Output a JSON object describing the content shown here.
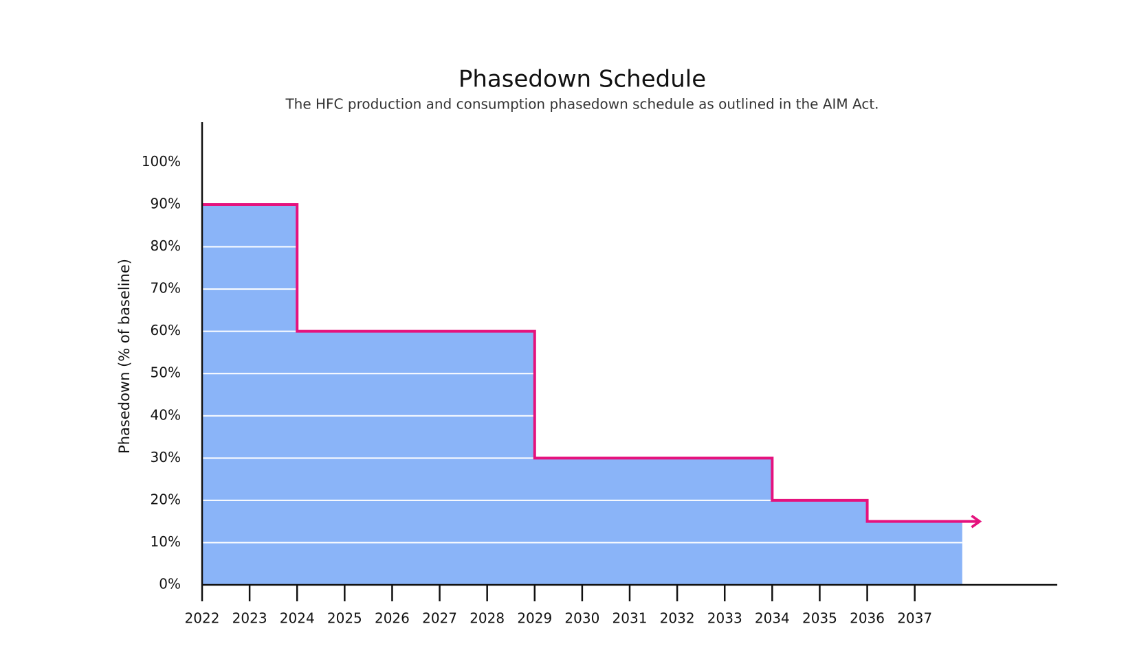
{
  "chart_data": {
    "type": "step",
    "title": "Phasedown Schedule",
    "subtitle": "The HFC production and consumption phasedown schedule as outlined in the AIM Act.",
    "y_label": "Phasedown (% of baseline)",
    "x": [
      2022,
      2024,
      2029,
      2034,
      2036,
      2038
    ],
    "values": [
      90,
      60,
      30,
      20,
      15,
      15
    ],
    "color": "#e5127d",
    "fill_color": "#8ab4f8",
    "grid_color": "#ffffff",
    "xlim": [
      2022,
      2040
    ],
    "xticks": [
      2022,
      2023,
      2024,
      2025,
      2026,
      2027,
      2028,
      2029,
      2030,
      2031,
      2032,
      2033,
      2034,
      2035,
      2036,
      2037
    ],
    "ylim": [
      0,
      109
    ],
    "yticks": [
      {
        "value": 0,
        "label": "0%"
      },
      {
        "value": 10,
        "label": "10%"
      },
      {
        "value": 20,
        "label": "20%"
      },
      {
        "value": 30,
        "label": "30%"
      },
      {
        "value": 40,
        "label": "40%"
      },
      {
        "value": 50,
        "label": "50%"
      },
      {
        "value": 60,
        "label": "60%"
      },
      {
        "value": 70,
        "label": "70%"
      },
      {
        "value": 80,
        "label": "80%"
      },
      {
        "value": 90,
        "label": "90%"
      },
      {
        "value": 100,
        "label": "100%"
      }
    ],
    "grid": true
  }
}
